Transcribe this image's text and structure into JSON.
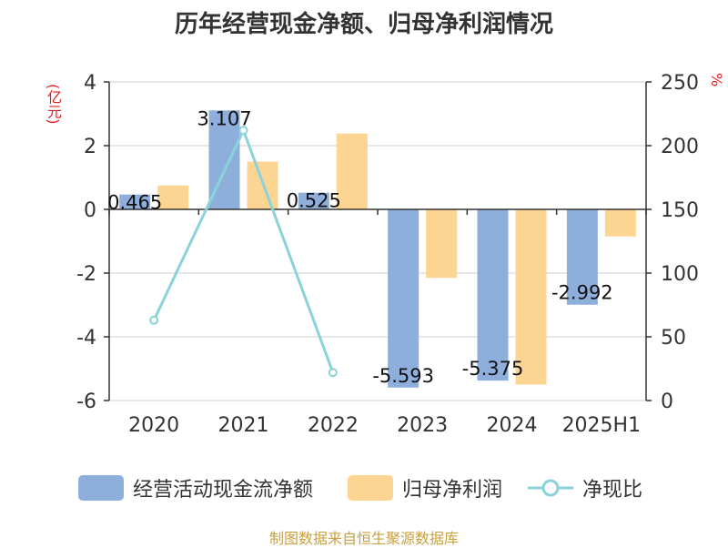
{
  "title": "历年经营现金净额、归母净利润情况",
  "source": "制图数据来自恒生聚源数据库",
  "colors": {
    "cash": "#8eaedb",
    "profit": "#fdd593",
    "ratio": "#8ad3d8",
    "unit": "#e02020",
    "axis": "#333333",
    "grid": "#cfcfcf"
  },
  "chart_data": {
    "type": "bar",
    "categories": [
      "2020",
      "2021",
      "2022",
      "2023",
      "2024",
      "2025H1"
    ],
    "series": [
      {
        "name": "经营活动现金流净额",
        "type": "bar",
        "axis": "left",
        "values": [
          0.465,
          3.107,
          0.525,
          -5.593,
          -5.375,
          -2.992
        ],
        "labels": [
          "0.465",
          "3.107",
          "0.525",
          "-5.593",
          "-5.375",
          "-2.992"
        ]
      },
      {
        "name": "归母净利润",
        "type": "bar",
        "axis": "left",
        "values": [
          0.75,
          1.5,
          2.38,
          -2.15,
          -5.5,
          -0.85
        ]
      },
      {
        "name": "净现比",
        "type": "line",
        "axis": "right",
        "values": [
          63,
          212,
          22,
          null,
          null,
          null
        ]
      }
    ],
    "y_left": {
      "unit": "(亿元)",
      "ylim": [
        -6,
        4
      ],
      "ticks": [
        -6,
        -4,
        -2,
        0,
        2,
        4
      ]
    },
    "y_right": {
      "unit": "%",
      "ylim": [
        0,
        250
      ],
      "ticks": [
        0,
        50,
        100,
        150,
        200,
        250
      ]
    },
    "grid": true,
    "legend_position": "bottom"
  }
}
